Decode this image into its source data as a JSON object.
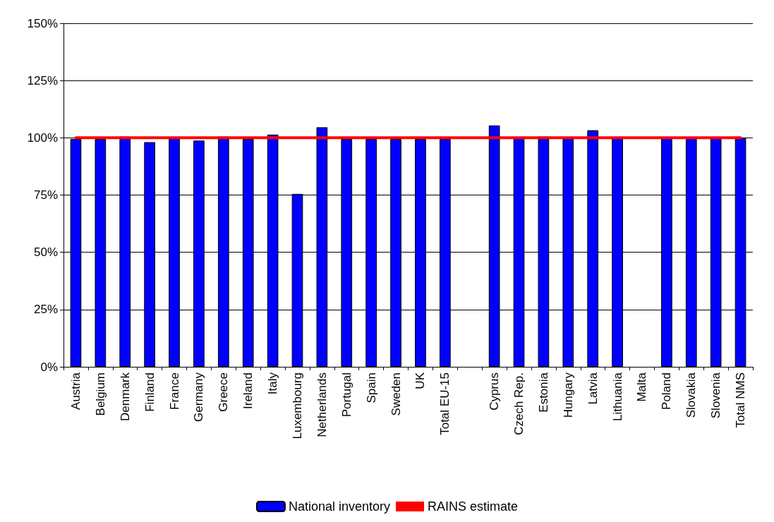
{
  "chart_data": {
    "type": "bar",
    "categories": [
      "Austria",
      "Belgium",
      "Denmark",
      "Finland",
      "France",
      "Germany",
      "Greece",
      "Ireland",
      "Italy",
      "Luxembourg",
      "Netherlands",
      "Portugal",
      "Spain",
      "Sweden",
      "UK",
      "Total EU-15",
      null,
      "Cyprus",
      "Czech Rep.",
      "Estonia",
      "Hungary",
      "Latvia",
      "Lithuania",
      "Malta",
      "Poland",
      "Slovakia",
      "Slovenia",
      "Total NMS"
    ],
    "series": [
      {
        "name": "National inventory",
        "color": "#0000ff",
        "values": [
          99.5,
          99.5,
          100.5,
          98.1,
          100,
          98.8,
          100.5,
          99.5,
          101.4,
          75.5,
          104.6,
          99.5,
          99.5,
          99.5,
          99.5,
          99.5,
          null,
          105.4,
          100,
          100.5,
          100,
          103.3,
          100,
          null,
          100,
          100,
          100,
          100
        ]
      },
      {
        "name": "RAINS estimate",
        "type": "line",
        "color": "#ff0000",
        "values": [
          100,
          100,
          100,
          100,
          100,
          100,
          100,
          100,
          100,
          100,
          100,
          100,
          100,
          100,
          100,
          100,
          100,
          100,
          100,
          100,
          100,
          100,
          100,
          100,
          100,
          100,
          100,
          100
        ]
      }
    ],
    "ylim": [
      0,
      150
    ],
    "yticks": [
      {
        "value": 0,
        "label": "0%"
      },
      {
        "value": 25,
        "label": "25%"
      },
      {
        "value": 50,
        "label": "50%"
      },
      {
        "value": 75,
        "label": "75%"
      },
      {
        "value": 100,
        "label": "100%"
      },
      {
        "value": 125,
        "label": "125%"
      },
      {
        "value": 150,
        "label": "150%"
      }
    ],
    "grid": "y",
    "legend": "bottom"
  }
}
